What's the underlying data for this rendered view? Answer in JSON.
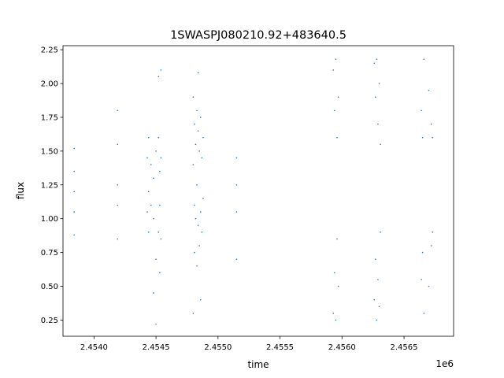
{
  "chart_data": {
    "type": "scatter",
    "title": "1SWASPJ080210.92+483640.5",
    "xlabel": "time",
    "ylabel": "flux",
    "x_offset_label": "1e6",
    "x_scale_factor": 1000000,
    "xlim": [
      2453750,
      2456900
    ],
    "ylim": [
      0.13,
      2.28
    ],
    "x_ticks": [
      2454000,
      2454500,
      2455000,
      2455500,
      2456000,
      2456500
    ],
    "x_tick_labels": [
      "2.4540",
      "2.4545",
      "2.4550",
      "2.4555",
      "2.4560",
      "2.4565"
    ],
    "y_ticks": [
      0.25,
      0.5,
      0.75,
      1.0,
      1.25,
      1.5,
      1.75,
      2.0,
      2.25
    ],
    "y_tick_labels": [
      "0.25",
      "0.50",
      "0.75",
      "1.00",
      "1.25",
      "1.50",
      "1.75",
      "2.00",
      "2.25"
    ],
    "grid": false,
    "marker_color": "#1f77b4",
    "series": [
      {
        "x": [
          2453840,
          2453840,
          2453840,
          2453840,
          2453840,
          2454190,
          2454190,
          2454190,
          2454190,
          2454190,
          2454430,
          2454430,
          2454440,
          2454440,
          2454440,
          2454460,
          2454460,
          2454480,
          2454480,
          2454480,
          2454500,
          2454500,
          2454500,
          2454520,
          2454520,
          2454520,
          2454530,
          2454530,
          2454530,
          2454540,
          2454540,
          2454540,
          2454800,
          2454800,
          2454800,
          2454810,
          2454810,
          2454810,
          2454820,
          2454820,
          2454830,
          2454830,
          2454830,
          2454840,
          2454840,
          2454840,
          2454850,
          2454850,
          2454860,
          2454860,
          2454860,
          2454870,
          2454870,
          2454880,
          2454880,
          2455150,
          2455150,
          2455150,
          2455150,
          2455930,
          2455930,
          2455940,
          2455940,
          2455950,
          2455950,
          2455960,
          2455960,
          2455970,
          2455970,
          2456260,
          2456260,
          2456270,
          2456270,
          2456280,
          2456280,
          2456290,
          2456290,
          2456300,
          2456300,
          2456310,
          2456310,
          2456640,
          2456640,
          2456650,
          2456650,
          2456660,
          2456660,
          2456700,
          2456700,
          2456720,
          2456720,
          2456730,
          2456730
        ],
        "y": [
          1.52,
          1.2,
          1.05,
          0.88,
          1.35,
          1.8,
          1.25,
          1.1,
          0.85,
          1.55,
          1.45,
          1.05,
          1.6,
          1.2,
          0.9,
          1.4,
          1.1,
          1.3,
          1.0,
          0.45,
          1.5,
          0.7,
          0.22,
          1.6,
          0.9,
          2.05,
          1.35,
          1.1,
          0.6,
          1.45,
          0.85,
          2.1,
          1.9,
          1.4,
          0.3,
          1.7,
          1.1,
          0.75,
          1.55,
          1.0,
          1.8,
          1.25,
          0.65,
          1.65,
          0.95,
          2.08,
          1.5,
          0.8,
          1.75,
          1.05,
          0.4,
          1.45,
          0.9,
          1.6,
          1.15,
          1.45,
          1.25,
          1.05,
          0.7,
          2.1,
          0.3,
          1.8,
          0.6,
          2.18,
          0.25,
          1.6,
          0.85,
          1.9,
          0.5,
          2.15,
          0.4,
          1.9,
          0.7,
          2.18,
          0.25,
          1.7,
          0.55,
          2.0,
          0.35,
          1.55,
          0.9,
          1.8,
          0.55,
          1.6,
          0.75,
          2.18,
          0.3,
          1.95,
          0.5,
          1.7,
          0.8,
          1.6,
          0.9
        ]
      }
    ]
  }
}
